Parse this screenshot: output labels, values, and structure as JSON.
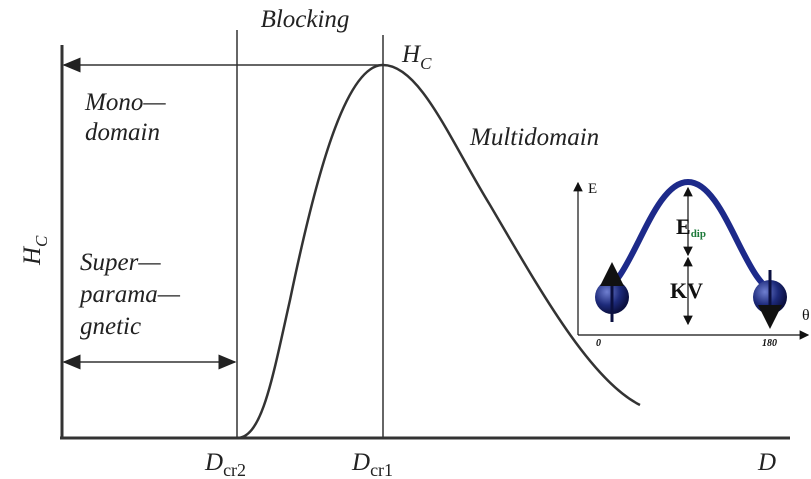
{
  "labels": {
    "blocking": "Blocking",
    "peak": {
      "main": "H",
      "sub": "C"
    },
    "mono": [
      "Mono—",
      "domain"
    ],
    "multidomain": "Multidomain",
    "y_axis": {
      "main": "H",
      "sub": "C"
    },
    "super": [
      "Super—",
      "parama—",
      "gnetic"
    ],
    "dcr2": {
      "main": "D",
      "sub": "cr2"
    },
    "dcr1": {
      "main": "D",
      "sub": "cr1"
    },
    "x_axis": "D"
  },
  "inset": {
    "y_axis": "E",
    "e_dip": {
      "main": "E",
      "sub": "dip"
    },
    "kv": "KV",
    "x_start": "0",
    "x_end": "180",
    "x_axis": "θ"
  }
}
